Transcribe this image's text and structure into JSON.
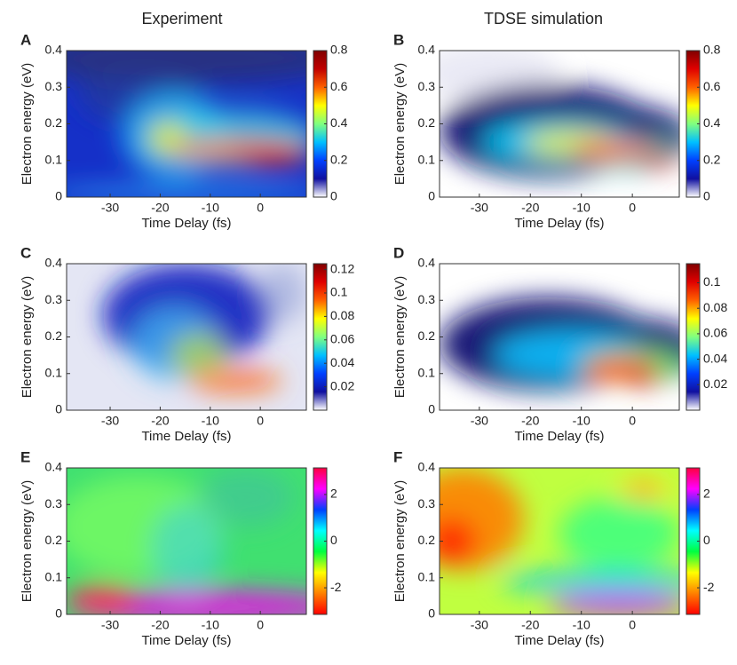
{
  "header": {
    "left": "Experiment",
    "right": "TDSE simulation"
  },
  "chart_data": [
    {
      "type": "heatmap",
      "panel": "A",
      "xlabel": "Time Delay (fs)",
      "ylabel": "Electron energy (eV)",
      "xlim": [
        -38.7,
        9.2
      ],
      "xticks": [
        -30,
        -20,
        -10,
        0
      ],
      "ylim": [
        0,
        0.4
      ],
      "yticks": [
        0,
        0.1,
        0.2,
        0.3,
        0.4
      ],
      "colormap": "jet",
      "clim": [
        0,
        0.8
      ],
      "cticks": [
        0,
        0.2,
        0.4,
        0.6,
        0.8
      ]
    },
    {
      "type": "heatmap",
      "panel": "B",
      "xlabel": "Time Delay (fs)",
      "ylabel": "Electron energy (eV)",
      "xlim": [
        -37.8,
        9.2
      ],
      "xticks": [
        -30,
        -20,
        -10,
        0
      ],
      "ylim": [
        0,
        0.4
      ],
      "yticks": [
        0,
        0.1,
        0.2,
        0.3,
        0.4
      ],
      "colormap": "jet-white",
      "clim": [
        0,
        0.8
      ],
      "cticks": [
        0,
        0.2,
        0.4,
        0.6,
        0.8
      ]
    },
    {
      "type": "heatmap",
      "panel": "C",
      "xlabel": "Time Delay (fs)",
      "ylabel": "Electron energy (eV)",
      "xlim": [
        -38.7,
        9.2
      ],
      "xticks": [
        -30,
        -20,
        -10,
        0
      ],
      "ylim": [
        0,
        0.4
      ],
      "yticks": [
        0,
        0.1,
        0.2,
        0.3,
        0.4
      ],
      "colormap": "jet-white",
      "clim": [
        0,
        0.125
      ],
      "cticks": [
        0.02,
        0.04,
        0.06,
        0.08,
        0.1,
        0.12
      ]
    },
    {
      "type": "heatmap",
      "panel": "D",
      "xlabel": "Time Delay (fs)",
      "ylabel": "Electron energy (eV)",
      "xlim": [
        -37.8,
        9.2
      ],
      "xticks": [
        -30,
        -20,
        -10,
        0
      ],
      "ylim": [
        0,
        0.4
      ],
      "yticks": [
        0,
        0.1,
        0.2,
        0.3,
        0.4
      ],
      "colormap": "jet-white",
      "clim": [
        0,
        0.115
      ],
      "cticks": [
        0.02,
        0.04,
        0.06,
        0.08,
        0.1
      ]
    },
    {
      "type": "heatmap",
      "panel": "E",
      "xlabel": "Time Delay (fs)",
      "ylabel": "Electron energy (eV)",
      "xlim": [
        -38.7,
        9.2
      ],
      "xticks": [
        -30,
        -20,
        -10,
        0
      ],
      "ylim": [
        0,
        0.4
      ],
      "yticks": [
        0,
        0.1,
        0.2,
        0.3,
        0.4
      ],
      "colormap": "hsv",
      "clim": [
        -3.14,
        3.14
      ],
      "cticks": [
        -2,
        0,
        2
      ]
    },
    {
      "type": "heatmap",
      "panel": "F",
      "xlabel": "Time Delay (fs)",
      "ylabel": "Electron energy (eV)",
      "xlim": [
        -37.8,
        9.2
      ],
      "xticks": [
        -30,
        -20,
        -10,
        0
      ],
      "ylim": [
        0,
        0.4
      ],
      "yticks": [
        0,
        0.1,
        0.2,
        0.3,
        0.4
      ],
      "colormap": "hsv",
      "clim": [
        -3.14,
        3.14
      ],
      "cticks": [
        -2,
        0,
        2
      ]
    }
  ]
}
